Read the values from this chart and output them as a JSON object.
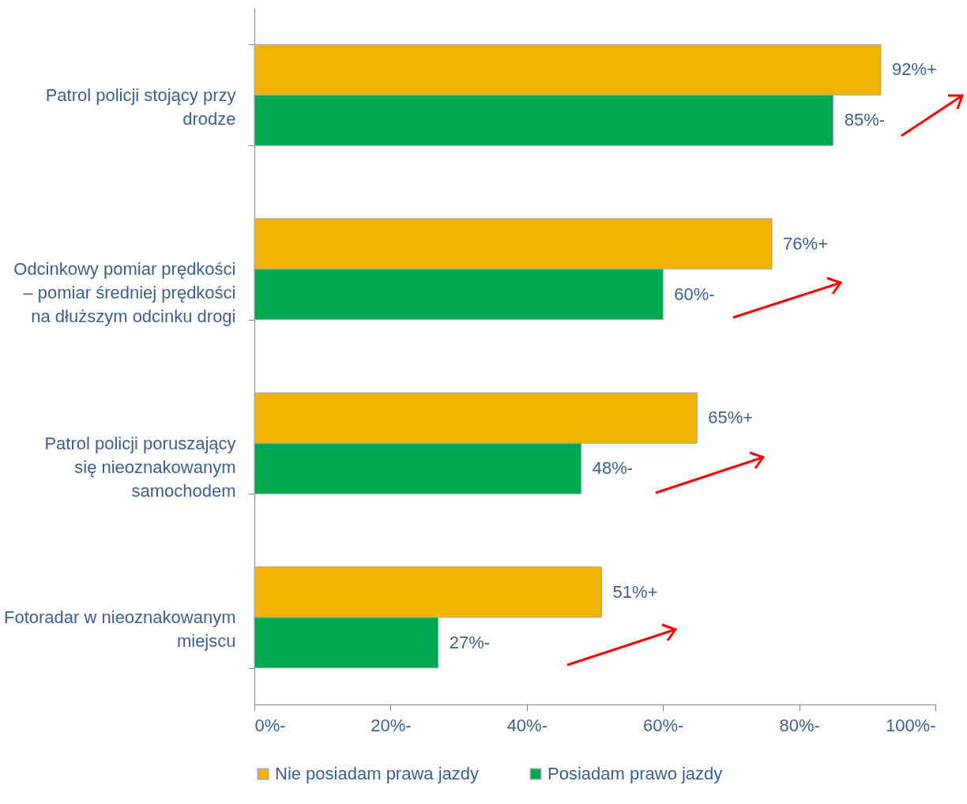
{
  "chart_data": {
    "type": "bar",
    "orientation": "horizontal",
    "categories": [
      "Patrol policji stojący przy drodze",
      "Odcinkowy pomiar prędkości – pomiar średniej prędkości na dłuższym odcinku drogi",
      "Patrol policji poruszający się nieoznakowanym samochodem",
      "Fotoradar w nieoznakowanym miejscu"
    ],
    "series": [
      {
        "name": "Nie posiadam prawa jazdy",
        "color": "#f0b400",
        "values": [
          92,
          76,
          65,
          51
        ],
        "value_labels": [
          "92%+",
          "76%+",
          "65%+",
          "51%+"
        ]
      },
      {
        "name": "Posiadam prawo jazdy",
        "color": "#00a84f",
        "values": [
          85,
          60,
          48,
          27
        ],
        "value_labels": [
          "85%-",
          "60%-",
          "48%-",
          "27%-"
        ]
      }
    ],
    "xlim": [
      0,
      100
    ],
    "xticks": [
      {
        "value": 0,
        "label": "0%-"
      },
      {
        "value": 20,
        "label": "20%-"
      },
      {
        "value": 40,
        "label": "40%-"
      },
      {
        "value": 60,
        "label": "60%-"
      },
      {
        "value": 80,
        "label": "80%-"
      },
      {
        "value": 100,
        "label": "100%-"
      }
    ],
    "legend": "bottom"
  }
}
